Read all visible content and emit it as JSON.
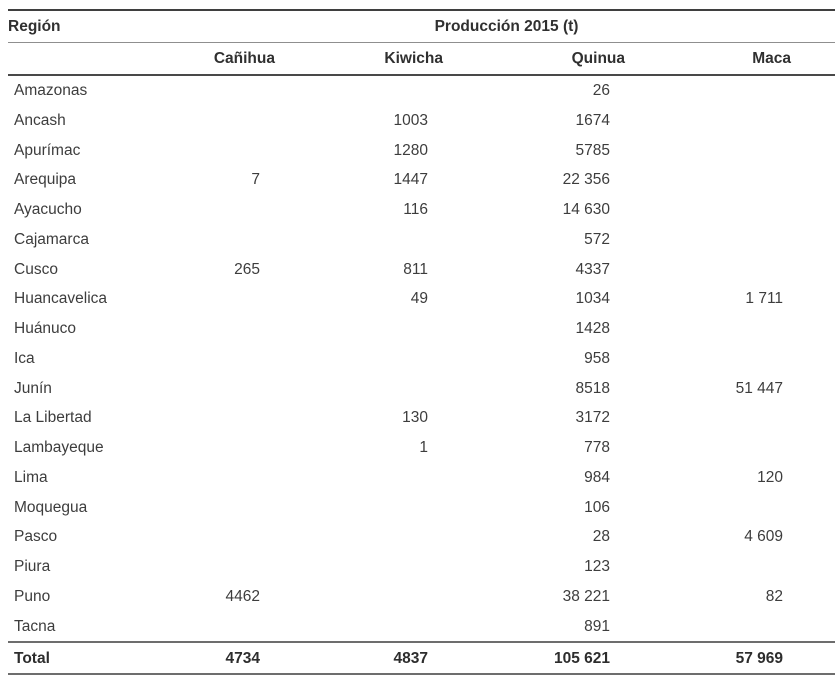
{
  "table": {
    "region_header": "Región",
    "production_header": "Producción 2015 (t)",
    "columns": [
      "Cañihua",
      "Kiwicha",
      "Quinua",
      "Maca"
    ],
    "rows": [
      {
        "region": "Amazonas",
        "canihua": "",
        "kiwicha": "",
        "quinua": "26",
        "maca": ""
      },
      {
        "region": "Ancash",
        "canihua": "",
        "kiwicha": "1003",
        "quinua": "1674",
        "maca": ""
      },
      {
        "region": "Apurímac",
        "canihua": "",
        "kiwicha": "1280",
        "quinua": "5785",
        "maca": ""
      },
      {
        "region": "Arequipa",
        "canihua": "7",
        "kiwicha": "1447",
        "quinua": "22 356",
        "maca": ""
      },
      {
        "region": "Ayacucho",
        "canihua": "",
        "kiwicha": "116",
        "quinua": "14 630",
        "maca": ""
      },
      {
        "region": "Cajamarca",
        "canihua": "",
        "kiwicha": "",
        "quinua": "572",
        "maca": ""
      },
      {
        "region": "Cusco",
        "canihua": "265",
        "kiwicha": "811",
        "quinua": "4337",
        "maca": ""
      },
      {
        "region": "Huancavelica",
        "canihua": "",
        "kiwicha": "49",
        "quinua": "1034",
        "maca": "1 711"
      },
      {
        "region": "Huánuco",
        "canihua": "",
        "kiwicha": "",
        "quinua": "1428",
        "maca": ""
      },
      {
        "region": "Ica",
        "canihua": "",
        "kiwicha": "",
        "quinua": "958",
        "maca": ""
      },
      {
        "region": "Junín",
        "canihua": "",
        "kiwicha": "",
        "quinua": "8518",
        "maca": "51 447"
      },
      {
        "region": "La Libertad",
        "canihua": "",
        "kiwicha": "130",
        "quinua": "3172",
        "maca": ""
      },
      {
        "region": "Lambayeque",
        "canihua": "",
        "kiwicha": "1",
        "quinua": "778",
        "maca": ""
      },
      {
        "region": "Lima",
        "canihua": "",
        "kiwicha": "",
        "quinua": "984",
        "maca": "120"
      },
      {
        "region": "Moquegua",
        "canihua": "",
        "kiwicha": "",
        "quinua": "106",
        "maca": ""
      },
      {
        "region": "Pasco",
        "canihua": "",
        "kiwicha": "",
        "quinua": "28",
        "maca": "4 609"
      },
      {
        "region": "Piura",
        "canihua": "",
        "kiwicha": "",
        "quinua": "123",
        "maca": ""
      },
      {
        "region": "Puno",
        "canihua": "4462",
        "kiwicha": "",
        "quinua": "38 221",
        "maca": "82"
      },
      {
        "region": "Tacna",
        "canihua": "",
        "kiwicha": "",
        "quinua": "891",
        "maca": ""
      }
    ],
    "total": {
      "region": "Total",
      "canihua": "4734",
      "kiwicha": "4837",
      "quinua": "105 621",
      "maca": "57 969"
    },
    "text_color": "#3d3d3d",
    "rule_color_strong": "#3f3f3f",
    "rule_color_light": "#8f8f8f"
  }
}
